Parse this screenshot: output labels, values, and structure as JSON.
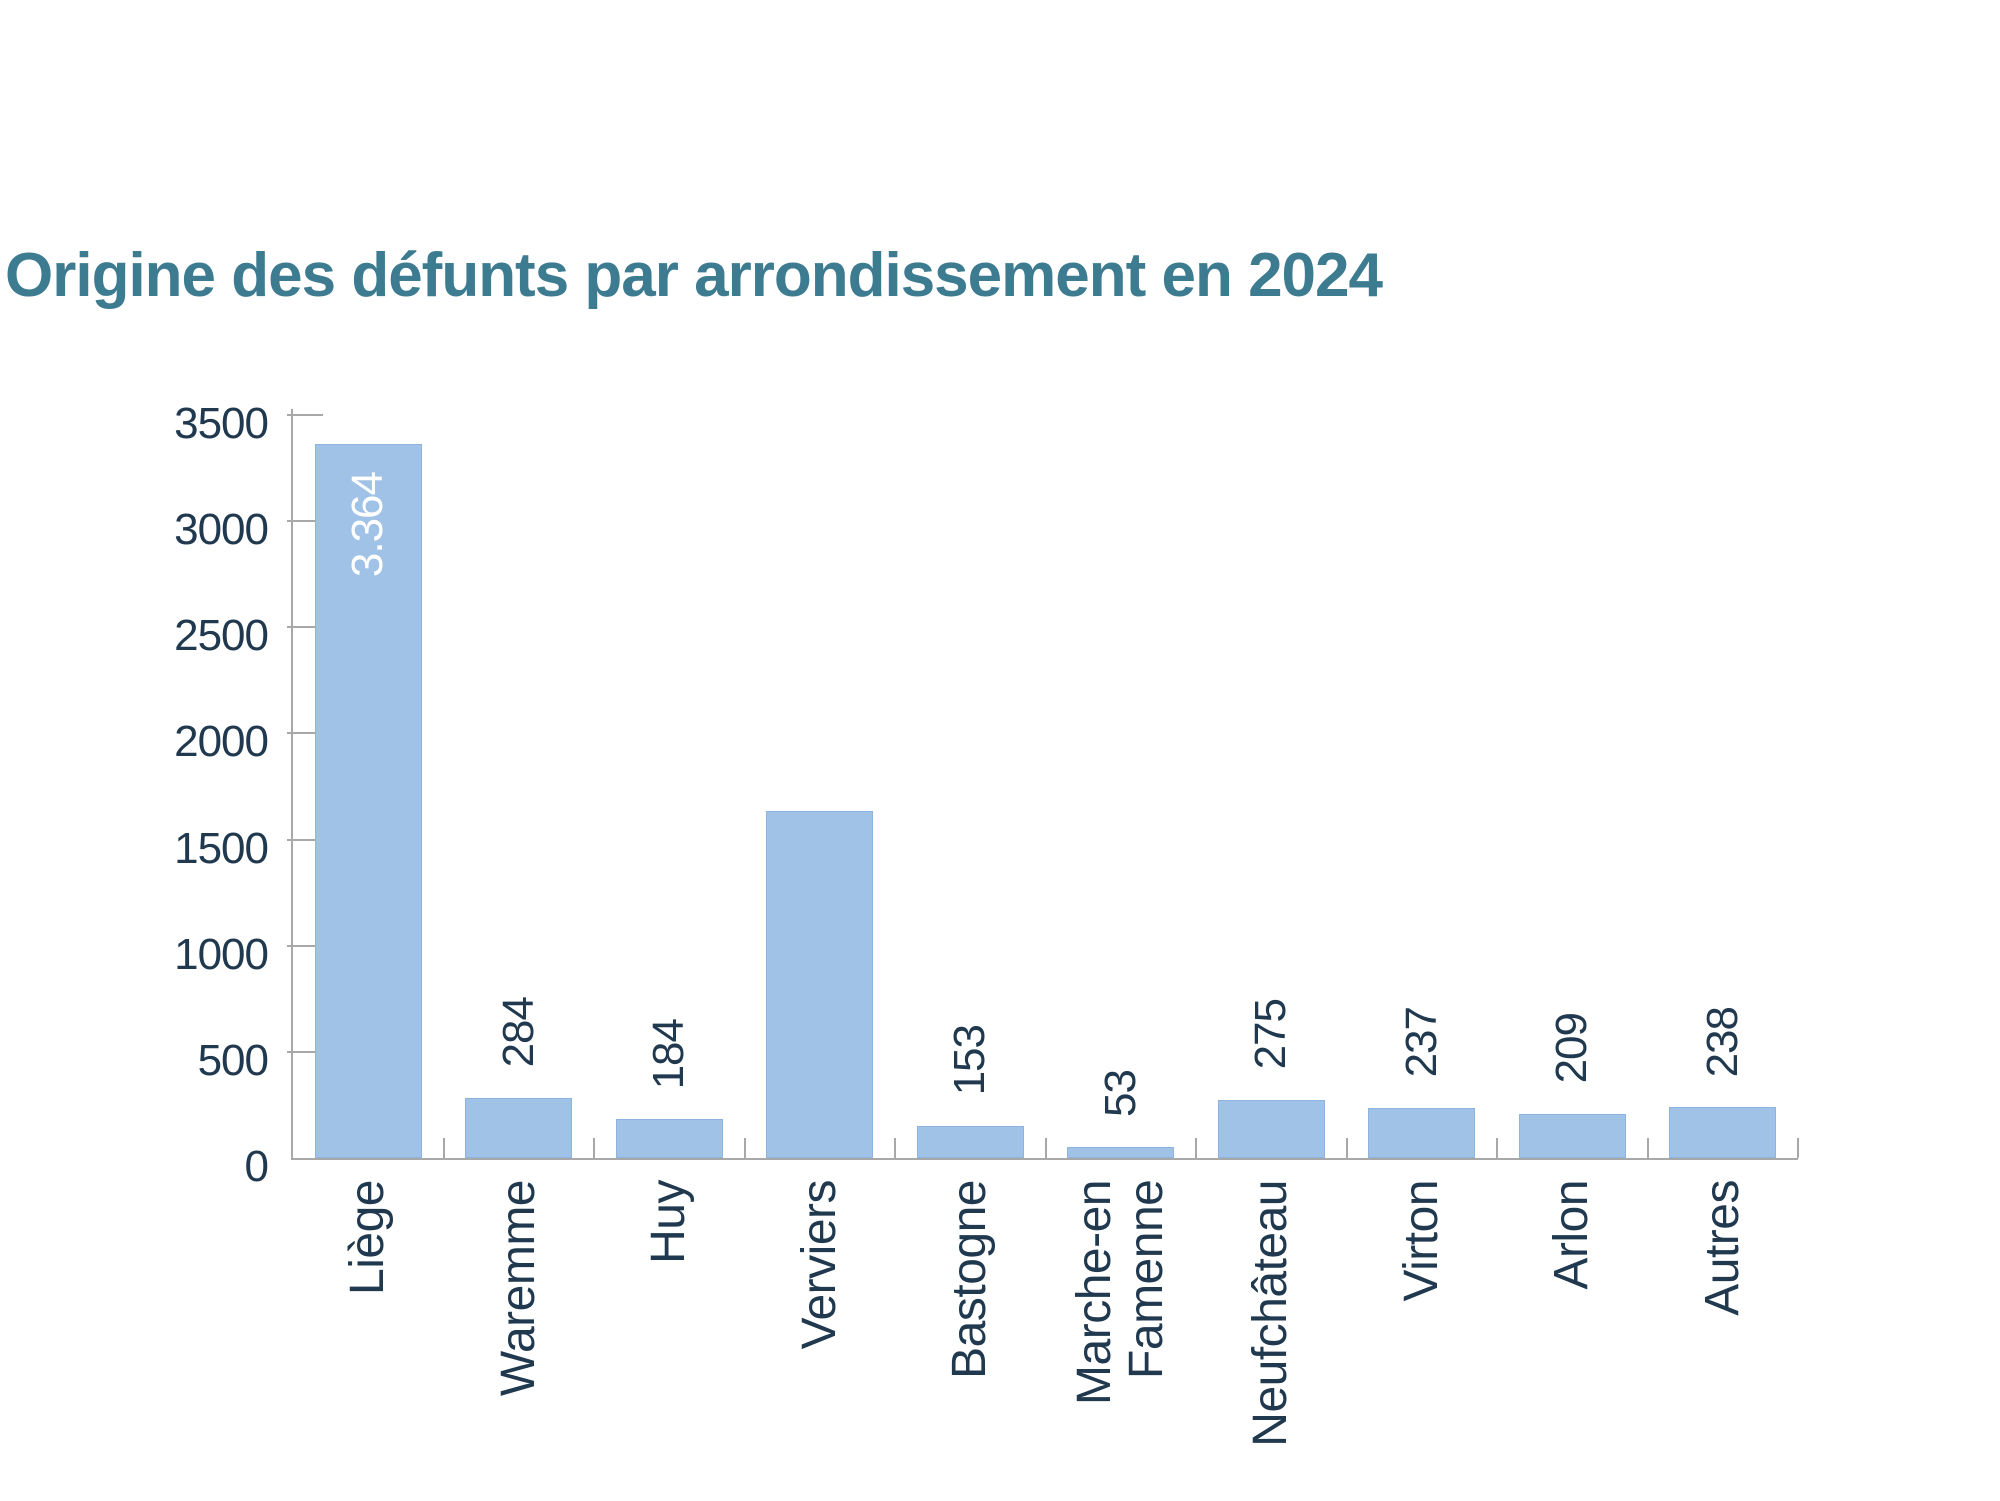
{
  "chart_data": {
    "type": "bar",
    "title": "Origine des défunts par arrondissement en 2024",
    "categories": [
      "Liège",
      "Waremme",
      "Huy",
      "Verviers",
      "Bastogne",
      "Marche-en\nFamenne",
      "Neufchâteau",
      "Virton",
      "Arlon",
      "Autres"
    ],
    "values": [
      3364,
      284,
      184,
      1635,
      153,
      53,
      275,
      237,
      209,
      238
    ],
    "bar_labels": [
      "3.364",
      "284",
      "184",
      "",
      "153",
      "53",
      "275",
      "237",
      "209",
      "238"
    ],
    "label_placement": [
      "inside-top",
      "outside",
      "outside",
      "none",
      "outside",
      "outside",
      "outside",
      "outside",
      "outside",
      "outside"
    ],
    "xlabel": "",
    "ylabel": "",
    "ylim": [
      0,
      3500
    ],
    "yticks": [
      0,
      500,
      1000,
      1500,
      2000,
      2500,
      3000,
      3500
    ],
    "grid": false,
    "legend": "none",
    "colors": {
      "bar_fill": "#9fc2e6",
      "bar_edge": "#8db4dd",
      "title": "#3d7b90",
      "axis_text": "#20394f",
      "inside_label": "#ffffff",
      "axis_line": "#a8a8a8"
    }
  }
}
